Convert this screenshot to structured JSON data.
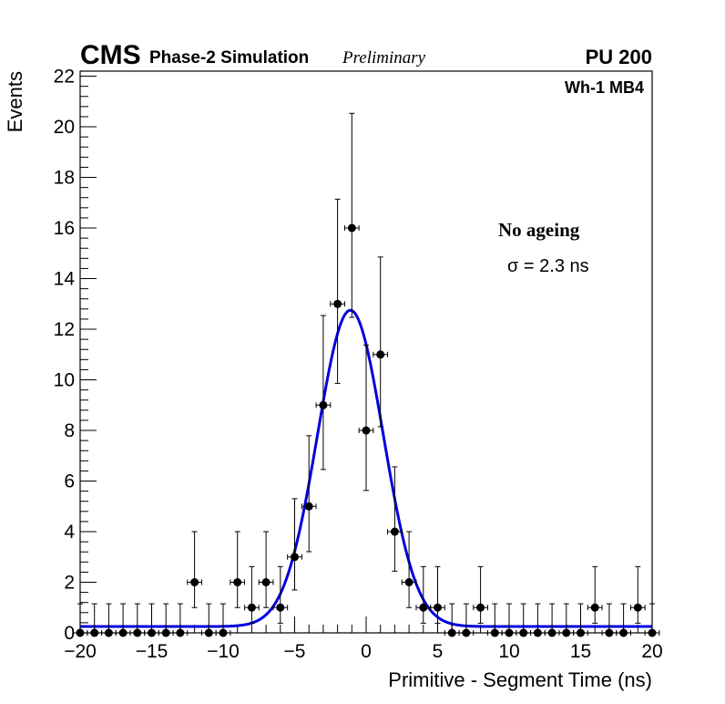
{
  "chart_data": {
    "type": "scatter",
    "header": {
      "experiment": "CMS",
      "subtitle": "Phase-2 Simulation",
      "status": "Preliminary",
      "pileup": "PU 200"
    },
    "region_label": "Wh-1 MB4",
    "annotation_title": "No ageing",
    "annotation_sigma": "σ = 2.3 ns",
    "xlabel": "Primitive - Segment Time (ns)",
    "ylabel": "Events",
    "xlim": [
      -20,
      20
    ],
    "ylim": [
      0,
      22.2
    ],
    "xticks": [
      -20,
      -15,
      -10,
      -5,
      0,
      5,
      10,
      15,
      20
    ],
    "xtick_labels": [
      "−20",
      "−15",
      "−10",
      "−5",
      "0",
      "5",
      "10",
      "15",
      "20"
    ],
    "yticks": [
      0,
      2,
      4,
      6,
      8,
      10,
      12,
      14,
      16,
      18,
      20,
      22
    ],
    "ytick_labels": [
      "0",
      "2",
      "4",
      "6",
      "8",
      "10",
      "12",
      "14",
      "16",
      "18",
      "20",
      "22"
    ],
    "bin_halfwidth": 0.5,
    "series": [
      {
        "name": "data",
        "x": [
          -20,
          -19,
          -18,
          -17,
          -16,
          -15,
          -14,
          -13,
          -12,
          -11,
          -10,
          -9,
          -8,
          -7,
          -6,
          -5,
          -4,
          -3,
          -2,
          -1,
          0,
          1,
          2,
          3,
          4,
          5,
          6,
          7,
          8,
          9,
          10,
          11,
          12,
          13,
          14,
          15,
          16,
          17,
          18,
          19,
          20
        ],
        "y": [
          0,
          0,
          0,
          0,
          0,
          0,
          0,
          0,
          2,
          0,
          0,
          2,
          1,
          2,
          1,
          3,
          5,
          9,
          13,
          16,
          8,
          11,
          4,
          2,
          1,
          1,
          0,
          0,
          1,
          0,
          0,
          0,
          0,
          0,
          0,
          0,
          1,
          0,
          0,
          1,
          0
        ]
      }
    ],
    "fit": {
      "name": "gaussian fit",
      "color": "#0000dd",
      "amplitude": 12.5,
      "mean": -1.1,
      "sigma": 2.3,
      "constant": 0.25
    }
  }
}
